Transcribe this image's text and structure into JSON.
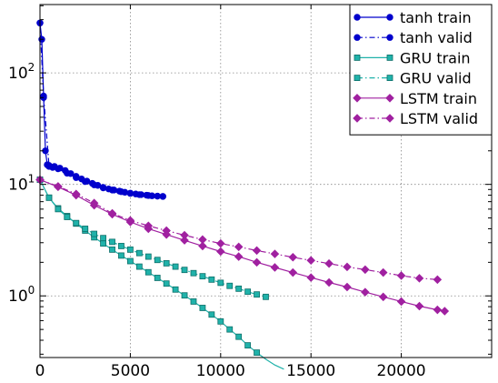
{
  "chart_data": {
    "type": "line",
    "title": "",
    "xlabel": "",
    "ylabel": "",
    "x_scale": "linear",
    "y_scale": "log",
    "xlim": [
      0,
      25000
    ],
    "ylim": [
      0.28,
      410
    ],
    "grid": true,
    "legend_position": "top-right",
    "x_ticks": [
      0,
      5000,
      10000,
      15000,
      20000
    ],
    "x_tick_labels": [
      "0",
      "5000",
      "10000",
      "15000",
      "20000"
    ],
    "y_ticks": [
      1,
      10,
      100
    ],
    "y_tick_labels": [
      "10",
      "10",
      "10"
    ],
    "y_tick_exponents": [
      "0",
      "1",
      "2"
    ],
    "series": [
      {
        "name": "tanh train",
        "color": "#0000cc",
        "marker": "circle",
        "line_style": "solid",
        "x": [
          0,
          100,
          200,
          300,
          400,
          500,
          700,
          1000,
          1500,
          2000,
          2500,
          3000,
          3500,
          4000,
          4500,
          5000,
          5500,
          6000,
          6500,
          6800
        ],
        "y": [
          280,
          200,
          60,
          20,
          15,
          14.5,
          14.2,
          13.8,
          12.6,
          11.5,
          10.6,
          9.9,
          9.3,
          8.9,
          8.6,
          8.3,
          8.1,
          7.95,
          7.85,
          7.8
        ]
      },
      {
        "name": "tanh valid",
        "color": "#0000cc",
        "marker": "circle",
        "line_style": "dashdot",
        "x": [
          0,
          200,
          500,
          800,
          1100,
          1400,
          1700,
          2000,
          2300,
          2600,
          2900,
          3200,
          3500,
          3800,
          4100,
          4400,
          4700,
          5000,
          5300,
          5600,
          5900,
          6200,
          6500,
          6800
        ],
        "y": [
          280,
          62,
          14.8,
          14.5,
          14.0,
          13.3,
          12.5,
          11.8,
          11.2,
          10.7,
          10.2,
          9.8,
          9.4,
          9.1,
          8.9,
          8.7,
          8.5,
          8.35,
          8.2,
          8.1,
          8.0,
          7.9,
          7.85,
          7.8
        ]
      },
      {
        "name": "GRU train",
        "color": "#20b2aa",
        "marker": "square",
        "line_style": "solid",
        "x": [
          0,
          500,
          1000,
          1500,
          2000,
          2500,
          3000,
          3500,
          4000,
          4500,
          5000,
          5500,
          6000,
          6500,
          7000,
          7500,
          8000,
          8500,
          9000,
          9500,
          10000,
          10500,
          11000,
          11500,
          12000,
          12500,
          13000,
          13500
        ],
        "y": [
          11,
          7.6,
          6.1,
          5.2,
          4.45,
          3.85,
          3.35,
          2.95,
          2.6,
          2.3,
          2.05,
          1.83,
          1.63,
          1.45,
          1.29,
          1.14,
          1.01,
          0.89,
          0.78,
          0.68,
          0.59,
          0.5,
          0.43,
          0.36,
          0.31,
          0.27,
          0.24,
          0.22
        ]
      },
      {
        "name": "GRU valid",
        "color": "#20b2aa",
        "marker": "square",
        "line_style": "dashdot",
        "x": [
          0,
          500,
          1000,
          1500,
          2000,
          2500,
          3000,
          3500,
          4000,
          4500,
          5000,
          5500,
          6000,
          6500,
          7000,
          7500,
          8000,
          8500,
          9000,
          9500,
          10000,
          10500,
          11000,
          11500,
          12000,
          12500
        ],
        "y": [
          11,
          7.6,
          6.0,
          5.1,
          4.5,
          4.0,
          3.6,
          3.3,
          3.05,
          2.8,
          2.6,
          2.42,
          2.25,
          2.1,
          1.96,
          1.83,
          1.71,
          1.6,
          1.5,
          1.4,
          1.31,
          1.23,
          1.16,
          1.09,
          1.03,
          0.98
        ]
      },
      {
        "name": "LSTM train",
        "color": "#a020a0",
        "marker": "diamond",
        "line_style": "solid",
        "x": [
          0,
          1000,
          2000,
          3000,
          4000,
          5000,
          6000,
          7000,
          8000,
          9000,
          10000,
          11000,
          12000,
          13000,
          14000,
          15000,
          16000,
          17000,
          18000,
          19000,
          20000,
          21000,
          22000,
          22400
        ],
        "y": [
          11,
          9.5,
          8.0,
          6.5,
          5.4,
          4.6,
          4.0,
          3.55,
          3.15,
          2.8,
          2.5,
          2.25,
          2.0,
          1.8,
          1.62,
          1.46,
          1.32,
          1.2,
          1.08,
          0.98,
          0.89,
          0.81,
          0.75,
          0.73
        ]
      },
      {
        "name": "LSTM valid",
        "color": "#a020a0",
        "marker": "diamond",
        "line_style": "dashdot",
        "x": [
          0,
          1000,
          2000,
          3000,
          4000,
          5000,
          6000,
          7000,
          8000,
          9000,
          10000,
          11000,
          12000,
          13000,
          14000,
          15000,
          16000,
          17000,
          18000,
          19000,
          20000,
          21000,
          22000
        ],
        "y": [
          11,
          9.6,
          8.2,
          6.8,
          5.5,
          4.75,
          4.25,
          3.85,
          3.5,
          3.2,
          2.95,
          2.75,
          2.55,
          2.38,
          2.22,
          2.08,
          1.95,
          1.82,
          1.72,
          1.62,
          1.52,
          1.44,
          1.4
        ]
      }
    ]
  }
}
